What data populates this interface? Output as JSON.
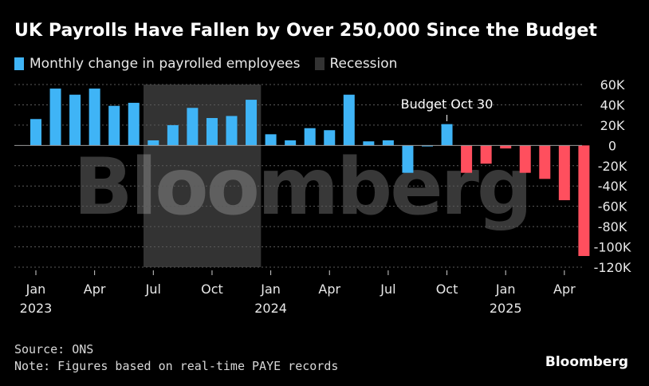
{
  "header": {
    "title": "UK Payrolls Have Fallen by Over 250,000 Since the Budget"
  },
  "legend": {
    "items": [
      {
        "label": "Monthly change in payrolled employees",
        "color": "#3fb4f6"
      },
      {
        "label": "Recession",
        "color": "#333333"
      }
    ]
  },
  "footer": {
    "source": "Source: ONS",
    "note": "Note: Figures based on real-time PAYE records",
    "brand": "Bloomberg"
  },
  "watermark": "Bloomberg",
  "chart_data": {
    "type": "bar",
    "title": "UK Payrolls Have Fallen by Over 250,000 Since the Budget",
    "xlabel": "",
    "ylabel": "",
    "ylim": [
      -120000,
      60000
    ],
    "yticks": [
      60000,
      40000,
      20000,
      0,
      -20000,
      -40000,
      -60000,
      -80000,
      -100000,
      -120000
    ],
    "ytick_labels": [
      "60K",
      "40K",
      "20K",
      "0",
      "-20K",
      "-40K",
      "-60K",
      "-80K",
      "-100K",
      "-120K"
    ],
    "x_ticks": [
      {
        "index": 0,
        "label": "Jan",
        "year": "2023"
      },
      {
        "index": 3,
        "label": "Apr",
        "year": ""
      },
      {
        "index": 6,
        "label": "Jul",
        "year": ""
      },
      {
        "index": 9,
        "label": "Oct",
        "year": ""
      },
      {
        "index": 12,
        "label": "Jan",
        "year": "2024"
      },
      {
        "index": 15,
        "label": "Apr",
        "year": ""
      },
      {
        "index": 18,
        "label": "Jul",
        "year": ""
      },
      {
        "index": 21,
        "label": "Oct",
        "year": ""
      },
      {
        "index": 24,
        "label": "Jan",
        "year": "2025"
      },
      {
        "index": 27,
        "label": "Apr",
        "year": ""
      }
    ],
    "categories": [
      "2023-01",
      "2023-02",
      "2023-03",
      "2023-04",
      "2023-05",
      "2023-06",
      "2023-07",
      "2023-08",
      "2023-09",
      "2023-10",
      "2023-11",
      "2023-12",
      "2024-01",
      "2024-02",
      "2024-03",
      "2024-04",
      "2024-05",
      "2024-06",
      "2024-07",
      "2024-08",
      "2024-09",
      "2024-10",
      "2024-11",
      "2024-12",
      "2025-01",
      "2025-02",
      "2025-03",
      "2025-04",
      "2025-05",
      "2025-06"
    ],
    "values": [
      26000,
      56000,
      50000,
      56000,
      39000,
      42000,
      5000,
      20000,
      37000,
      27000,
      29000,
      45000,
      11000,
      5000,
      17000,
      15000,
      50000,
      4000,
      5000,
      -27000,
      -1000,
      21000,
      -27000,
      -18000,
      -3000,
      -27000,
      -33000,
      -54000,
      -109000,
      null
    ],
    "colors": {
      "positive": "#3fb4f6",
      "negative": "#ff4f5e"
    },
    "negative_color_from_index": 22,
    "recession": {
      "start_index": 6,
      "end_index": 11,
      "color": "#333333"
    },
    "annotation": {
      "text": "Budget Oct 30",
      "index": 21
    },
    "grid": true
  }
}
